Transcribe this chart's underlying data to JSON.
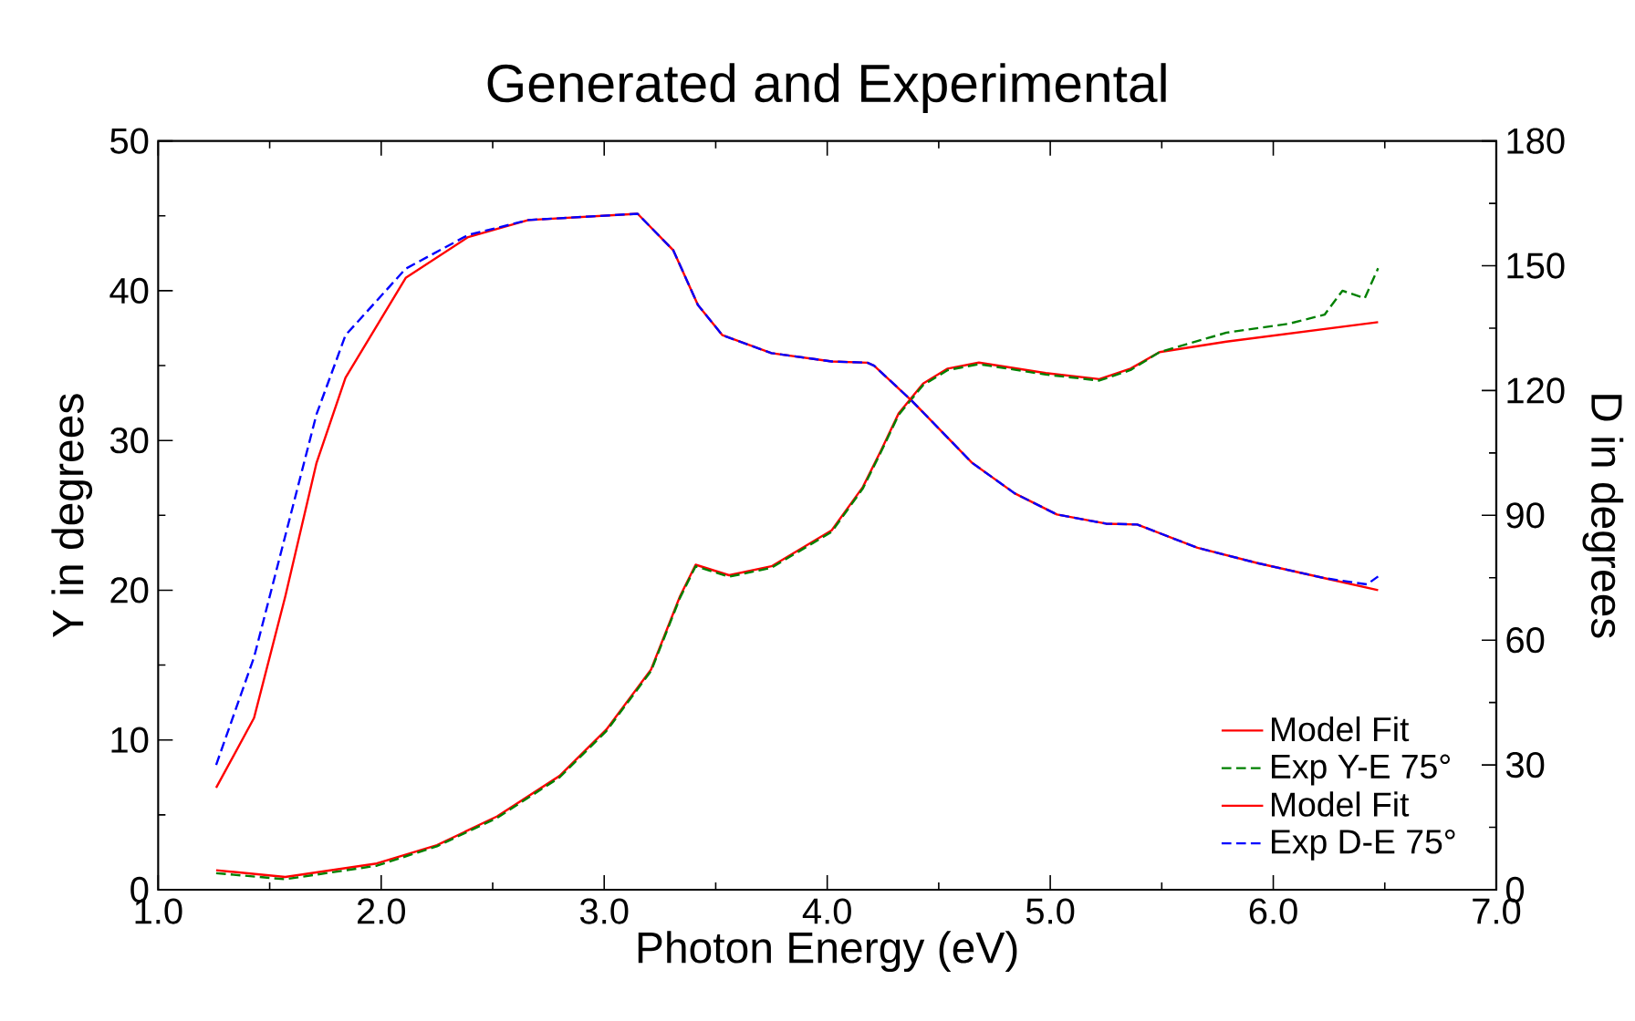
{
  "chart_data": {
    "type": "line",
    "title": "Generated and Experimental",
    "xlabel": "Photon Energy (eV)",
    "ylabel": "Y in degrees",
    "y2label": "D in degrees",
    "xlim": [
      1,
      7
    ],
    "xticks": [
      {
        "value": 1,
        "label": "1.0"
      },
      {
        "value": 2,
        "label": "2.0"
      },
      {
        "value": 3,
        "label": "3.0"
      },
      {
        "value": 4,
        "label": "4.0"
      },
      {
        "value": 5,
        "label": "5.0"
      },
      {
        "value": 6,
        "label": "6.0"
      },
      {
        "value": 7,
        "label": "7.0"
      }
    ],
    "ylim": [
      0,
      50
    ],
    "yticks": [
      0,
      10,
      20,
      30,
      40,
      50
    ],
    "y2lim": [
      0,
      180
    ],
    "y2ticks": [
      0,
      30,
      60,
      90,
      120,
      150,
      180
    ],
    "legend": "bottom right",
    "marker": "none",
    "series": [
      {
        "name": "Model Fit",
        "color": "#ff0000",
        "line_style": "solid",
        "x": [
          1.26,
          1.57,
          1.98,
          2.25,
          2.52,
          2.8,
          3.01,
          3.21,
          3.34,
          3.41,
          3.56,
          3.75,
          4.02,
          4.16,
          4.24,
          4.32,
          4.43,
          4.54,
          4.68,
          4.98,
          5.22,
          5.36,
          5.49,
          5.79,
          6.47
        ],
        "values": [
          1.3,
          0.85,
          1.75,
          2.97,
          4.9,
          7.6,
          10.7,
          14.7,
          19.6,
          21.7,
          21.0,
          21.6,
          24.0,
          26.9,
          29.3,
          31.8,
          33.8,
          34.8,
          35.2,
          34.5,
          34.1,
          34.8,
          35.9,
          36.6,
          37.9
        ]
      },
      {
        "name": "Exp Y-E 75°",
        "color": "#008000",
        "line_style": "dashed",
        "x": [
          1.26,
          1.57,
          1.98,
          2.25,
          2.52,
          2.8,
          3.01,
          3.21,
          3.34,
          3.41,
          3.56,
          3.75,
          4.02,
          4.16,
          4.24,
          4.32,
          4.43,
          4.54,
          4.68,
          4.98,
          5.22,
          5.36,
          5.49,
          5.79,
          6.07,
          6.23,
          6.31,
          6.41,
          6.47
        ],
        "values": [
          1.1,
          0.7,
          1.6,
          2.9,
          4.8,
          7.5,
          10.6,
          14.6,
          19.5,
          21.6,
          20.9,
          21.5,
          23.9,
          26.8,
          29.2,
          31.7,
          33.7,
          34.7,
          35.1,
          34.4,
          34.0,
          34.7,
          35.9,
          37.2,
          37.8,
          38.4,
          40.0,
          39.5,
          41.5
        ]
      },
      {
        "name": "Model Fit",
        "color": "#ff0000",
        "line_style": "solid",
        "axis": "y2",
        "x": [
          1.26,
          1.43,
          1.57,
          1.71,
          1.84,
          2.11,
          2.39,
          2.66,
          3.15,
          3.31,
          3.42,
          3.53,
          3.75,
          4.02,
          4.18,
          4.21,
          4.38,
          4.65,
          4.84,
          5.03,
          5.25,
          5.39,
          5.66,
          5.93,
          6.23,
          6.47
        ],
        "values": [
          24.5,
          41.3,
          70.5,
          102.6,
          123.1,
          147.1,
          156.9,
          161,
          162.5,
          153.7,
          140.6,
          133.3,
          129,
          127,
          126.7,
          126,
          117.5,
          102.6,
          95.3,
          90.2,
          88,
          87.8,
          82.2,
          78.5,
          74.9,
          72.0
        ]
      },
      {
        "name": "Exp D-E 75°",
        "color": "#0000ff",
        "line_style": "dashed",
        "axis": "y2",
        "x": [
          1.26,
          1.43,
          1.57,
          1.71,
          1.84,
          2.11,
          2.39,
          2.66,
          3.15,
          3.31,
          3.42,
          3.53,
          3.75,
          4.02,
          4.18,
          4.21,
          4.38,
          4.65,
          4.84,
          5.03,
          5.25,
          5.39,
          5.66,
          5.93,
          6.23,
          6.42,
          6.47
        ],
        "values": [
          30.0,
          55.9,
          85.1,
          114.3,
          133.3,
          149.3,
          157.4,
          161,
          162.5,
          153.7,
          140.6,
          133.3,
          129,
          127,
          126.7,
          126,
          117.5,
          102.6,
          95.3,
          90.2,
          88,
          87.8,
          82.2,
          78.5,
          74.9,
          73.4,
          75.3
        ]
      }
    ]
  }
}
